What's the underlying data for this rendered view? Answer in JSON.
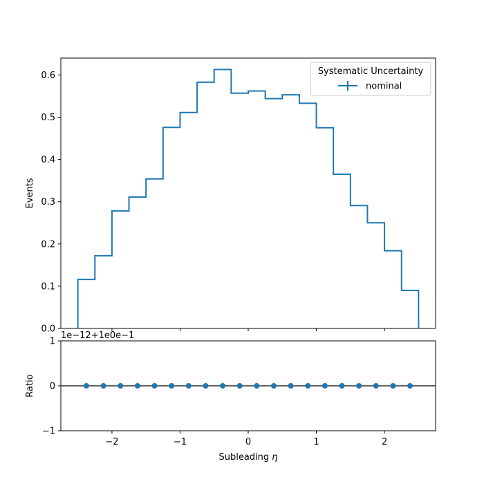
{
  "chart_data": [
    {
      "type": "histogram-step",
      "xlabel_prefix": "Subleading ",
      "xlabel_symbol": "η",
      "ylabel": "Events",
      "xlim": [
        -2.75,
        2.75
      ],
      "ylim": [
        0,
        0.64
      ],
      "bin_edges": [
        -2.5,
        -2.25,
        -2.0,
        -1.75,
        -1.5,
        -1.25,
        -1.0,
        -0.75,
        -0.5,
        -0.25,
        0.0,
        0.25,
        0.5,
        0.75,
        1.0,
        1.25,
        1.5,
        1.75,
        2.0,
        2.25,
        2.5
      ],
      "series": [
        {
          "name": "nominal",
          "color": "#1f77b4",
          "values": [
            0.116,
            0.172,
            0.278,
            0.311,
            0.354,
            0.476,
            0.511,
            0.583,
            0.613,
            0.557,
            0.562,
            0.544,
            0.553,
            0.533,
            0.475,
            0.365,
            0.291,
            0.25,
            0.184,
            0.09
          ]
        }
      ],
      "yticks": [
        0.0,
        0.1,
        0.2,
        0.3,
        0.4,
        0.5,
        0.6
      ],
      "ytick_labels": [
        "0.0",
        "0.1",
        "0.2",
        "0.3",
        "0.4",
        "0.5",
        "0.6"
      ],
      "legend": {
        "title": "Systematic Uncertainty",
        "entries": [
          "nominal"
        ],
        "placement": "top-right"
      }
    },
    {
      "type": "scatter",
      "ylabel": "Ratio",
      "offset_text": "1e−12+1e0e−1",
      "ylim": [
        -1,
        1
      ],
      "yticks": [
        -1,
        0,
        1
      ],
      "ytick_labels": [
        "−1",
        "0",
        "1"
      ],
      "xticks": [
        -2,
        -1,
        0,
        1,
        2
      ],
      "xtick_labels": [
        "−2",
        "−1",
        "0",
        "1",
        "2"
      ],
      "x": [
        -2.375,
        -2.125,
        -1.875,
        -1.625,
        -1.375,
        -1.125,
        -0.875,
        -0.625,
        -0.375,
        -0.125,
        0.125,
        0.375,
        0.625,
        0.875,
        1.125,
        1.375,
        1.625,
        1.875,
        2.125,
        2.375
      ],
      "y": [
        0,
        0,
        0,
        0,
        0,
        0,
        0,
        0,
        0,
        0,
        0,
        0,
        0,
        0,
        0,
        0,
        0,
        0,
        0,
        0
      ],
      "reference_line": 0,
      "color": "#1f77b4"
    }
  ]
}
